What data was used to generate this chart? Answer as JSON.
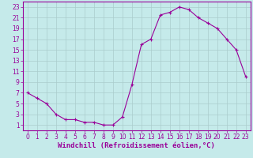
{
  "x": [
    0,
    1,
    2,
    3,
    4,
    5,
    6,
    7,
    8,
    9,
    10,
    11,
    12,
    13,
    14,
    15,
    16,
    17,
    18,
    19,
    20,
    21,
    22,
    23
  ],
  "y": [
    7,
    6,
    5,
    3,
    2,
    2,
    1.5,
    1.5,
    1,
    1,
    2.5,
    8.5,
    16,
    17,
    21.5,
    22,
    23,
    22.5,
    21,
    20,
    19,
    17,
    15,
    10
  ],
  "line_color": "#990099",
  "marker": "+",
  "marker_size": 3,
  "marker_lw": 0.8,
  "bg_color": "#c5eaea",
  "grid_color": "#aacccc",
  "xlabel": "Windchill (Refroidissement éolien,°C)",
  "xlabel_fontsize": 6.5,
  "tick_fontsize": 5.5,
  "ylim": [
    0,
    24
  ],
  "yticks": [
    1,
    3,
    5,
    7,
    9,
    11,
    13,
    15,
    17,
    19,
    21,
    23
  ],
  "xlim": [
    -0.5,
    23.5
  ],
  "xticks": [
    0,
    1,
    2,
    3,
    4,
    5,
    6,
    7,
    8,
    9,
    10,
    11,
    12,
    13,
    14,
    15,
    16,
    17,
    18,
    19,
    20,
    21,
    22,
    23
  ]
}
